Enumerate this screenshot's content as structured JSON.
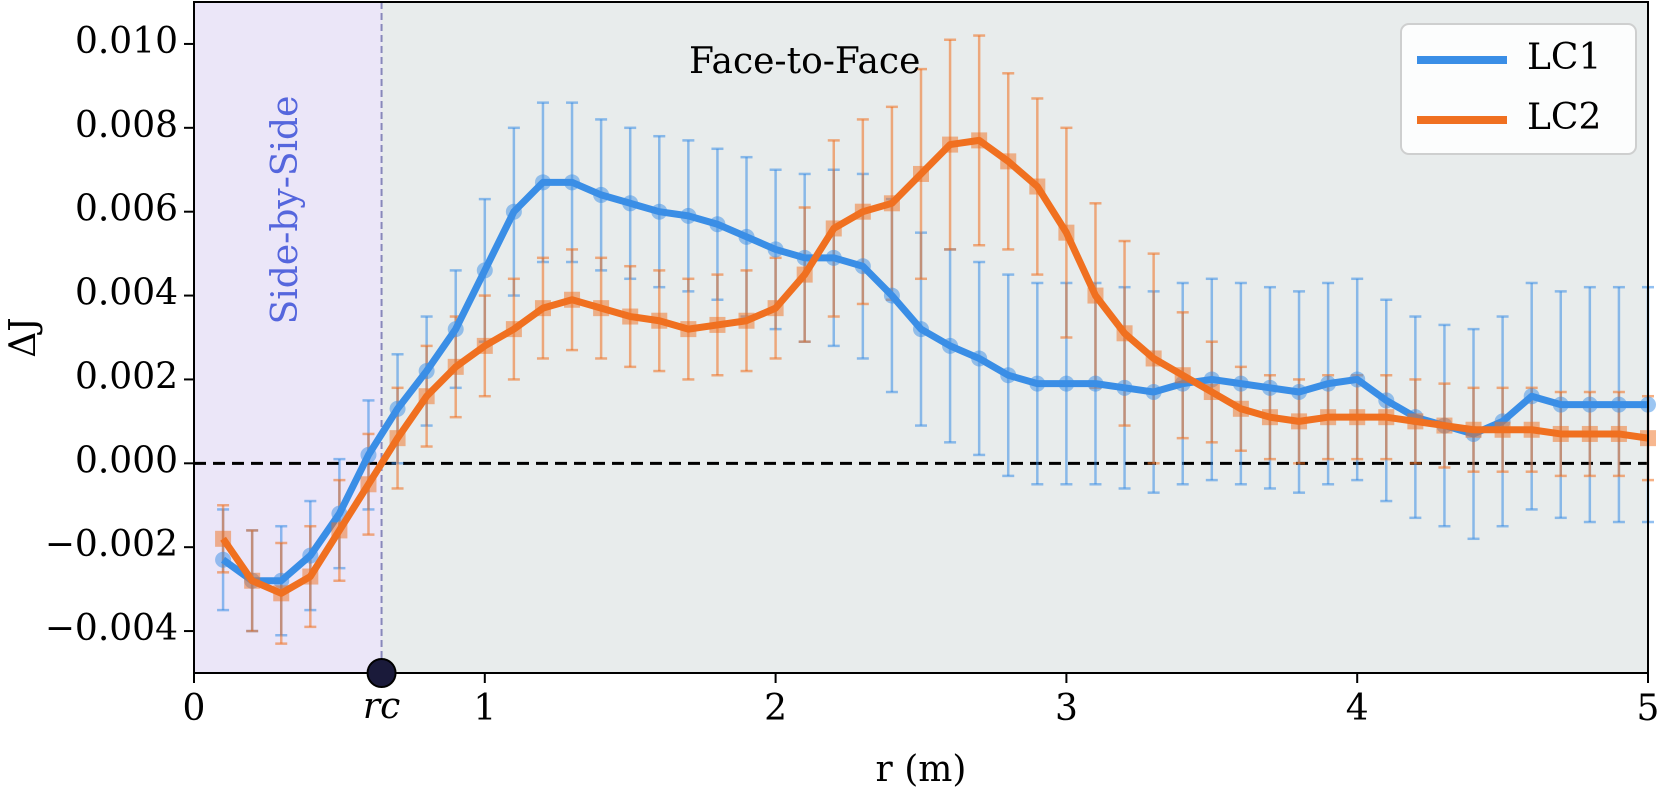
{
  "chart_data": {
    "type": "line",
    "ylabel": "ΔJ",
    "xlabel": "r (m)",
    "annotations": {
      "face": "Face-to-Face",
      "side": "Side-by-Side",
      "rc_label": "rc",
      "rc": 0.645
    },
    "x": [
      0.1,
      0.2,
      0.3,
      0.4,
      0.5,
      0.6,
      0.7,
      0.8,
      0.9,
      1.0,
      1.1,
      1.2,
      1.3,
      1.4,
      1.5,
      1.6,
      1.7,
      1.8,
      1.9,
      2.0,
      2.1,
      2.2,
      2.3,
      2.4,
      2.5,
      2.6,
      2.7,
      2.8,
      2.9,
      3.0,
      3.1,
      3.2,
      3.3,
      3.4,
      3.5,
      3.6,
      3.7,
      3.8,
      3.9,
      4.0,
      4.1,
      4.2,
      4.3,
      4.4,
      4.5,
      4.6,
      4.7,
      4.8,
      4.9,
      5.0
    ],
    "series": [
      {
        "name": "LC1",
        "color": "#3a8ee6",
        "marker": "circle",
        "values": [
          -0.0023,
          -0.0028,
          -0.0028,
          -0.0022,
          -0.0012,
          0.0002,
          0.0013,
          0.0022,
          0.0032,
          0.0046,
          0.006,
          0.0067,
          0.0067,
          0.0064,
          0.0062,
          0.006,
          0.0059,
          0.0057,
          0.0054,
          0.0051,
          0.0049,
          0.0049,
          0.0047,
          0.004,
          0.0032,
          0.0028,
          0.0025,
          0.0021,
          0.0019,
          0.0019,
          0.0019,
          0.0018,
          0.0017,
          0.0019,
          0.002,
          0.0019,
          0.0018,
          0.0017,
          0.0019,
          0.002,
          0.0015,
          0.0011,
          0.0009,
          0.0007,
          0.001,
          0.0016,
          0.0014,
          0.0014,
          0.0014,
          0.0014
        ],
        "errors": [
          0.0012,
          0.0012,
          0.0013,
          0.0013,
          0.0013,
          0.0013,
          0.0013,
          0.0013,
          0.0014,
          0.0017,
          0.002,
          0.0019,
          0.0019,
          0.0018,
          0.0018,
          0.0018,
          0.0018,
          0.0018,
          0.0019,
          0.0019,
          0.002,
          0.0021,
          0.0022,
          0.0023,
          0.0023,
          0.0023,
          0.0023,
          0.0024,
          0.0024,
          0.0024,
          0.0024,
          0.0024,
          0.0024,
          0.0024,
          0.0024,
          0.0024,
          0.0024,
          0.0024,
          0.0024,
          0.0024,
          0.0024,
          0.0024,
          0.0024,
          0.0025,
          0.0025,
          0.0027,
          0.0027,
          0.0028,
          0.0028,
          0.0028
        ]
      },
      {
        "name": "LC2",
        "color": "#f07020",
        "marker": "square",
        "values": [
          -0.0018,
          -0.0028,
          -0.0031,
          -0.0027,
          -0.0016,
          -0.0005,
          0.0006,
          0.0016,
          0.0023,
          0.0028,
          0.0032,
          0.0037,
          0.0039,
          0.0037,
          0.0035,
          0.0034,
          0.0032,
          0.0033,
          0.0034,
          0.0037,
          0.0045,
          0.0056,
          0.006,
          0.0062,
          0.0069,
          0.0076,
          0.0077,
          0.0072,
          0.0066,
          0.0055,
          0.004,
          0.0031,
          0.0025,
          0.0021,
          0.0017,
          0.0013,
          0.0011,
          0.001,
          0.0011,
          0.0011,
          0.0011,
          0.001,
          0.0009,
          0.0008,
          0.0008,
          0.0008,
          0.0007,
          0.0007,
          0.0007,
          0.0006
        ],
        "errors": [
          0.0008,
          0.0012,
          0.0012,
          0.0012,
          0.0012,
          0.0012,
          0.0012,
          0.0012,
          0.0012,
          0.0012,
          0.0012,
          0.0012,
          0.0012,
          0.0012,
          0.0012,
          0.0012,
          0.0012,
          0.0012,
          0.0012,
          0.0012,
          0.0016,
          0.0021,
          0.0022,
          0.0023,
          0.0025,
          0.0025,
          0.0025,
          0.0021,
          0.0021,
          0.0025,
          0.0022,
          0.0022,
          0.0025,
          0.0015,
          0.0012,
          0.001,
          0.001,
          0.001,
          0.001,
          0.001,
          0.001,
          0.001,
          0.001,
          0.001,
          0.001,
          0.001,
          0.001,
          0.001,
          0.001,
          0.001
        ]
      }
    ],
    "xlim": [
      0,
      5
    ],
    "ylim": [
      -0.005,
      0.011
    ],
    "xticks": [
      0,
      1,
      2,
      3,
      4,
      5
    ],
    "yticks": [
      {
        "value": -0.004,
        "label": "−0.004"
      },
      {
        "value": -0.002,
        "label": "−0.002"
      },
      {
        "value": 0,
        "label": "0.000"
      },
      {
        "value": 0.002,
        "label": "0.002"
      },
      {
        "value": 0.004,
        "label": "0.004"
      },
      {
        "value": 0.006,
        "label": "0.006"
      },
      {
        "value": 0.008,
        "label": "0.008"
      },
      {
        "value": 0.01,
        "label": "0.010"
      }
    ],
    "legend": "upper right"
  }
}
